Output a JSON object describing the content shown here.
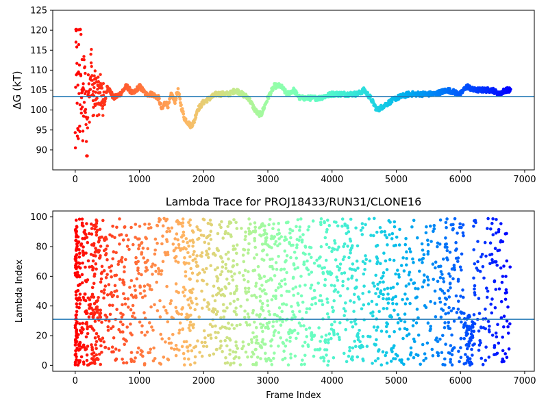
{
  "chart_data": [
    {
      "type": "scatter",
      "title": "",
      "xlabel": "",
      "ylabel": "ΔG (kT)",
      "xlim": [
        -350,
        7150
      ],
      "ylim": [
        85,
        125
      ],
      "xticks": [
        0,
        1000,
        2000,
        3000,
        4000,
        5000,
        6000,
        7000
      ],
      "yticks": [
        90,
        95,
        100,
        105,
        110,
        115,
        120,
        125
      ],
      "reference_line": 103.4,
      "reference_line_color": "#1f77b4",
      "colormap": "rainbow (red → purple with increasing frame index)",
      "series": [
        {
          "x": [
            0,
            10,
            20,
            30,
            40,
            50,
            60,
            70,
            80,
            100,
            120,
            140,
            160,
            180,
            200,
            220,
            250,
            280,
            300,
            350,
            400,
            450,
            500,
            600,
            700,
            800,
            900,
            1000,
            1100,
            1200,
            1300,
            1350,
            1400,
            1450,
            1500,
            1550,
            1600,
            1650,
            1700,
            1750,
            1800,
            1850,
            1900,
            2000,
            2100,
            2200,
            2300,
            2400,
            2500,
            2600,
            2700,
            2800,
            2850,
            2900,
            3000,
            3100,
            3150,
            3200,
            3300,
            3400,
            3500,
            3600,
            3700,
            3800,
            4000,
            4200,
            4400,
            4500,
            4600,
            4700,
            4800,
            5000,
            5200,
            5400,
            5600,
            5800,
            6000,
            6100,
            6200,
            6300,
            6400,
            6500,
            6600,
            6700,
            6780
          ],
          "y": [
            90,
            110,
            120,
            95,
            105,
            100,
            115,
            98,
            112,
            108,
            96,
            110,
            104,
            89,
            107,
            101,
            112,
            99,
            106,
            103,
            105,
            101,
            106,
            103,
            104,
            106,
            104,
            106,
            104,
            104,
            103,
            100,
            102,
            101,
            104,
            102,
            105,
            101,
            98,
            97,
            96,
            97,
            100,
            102,
            103,
            104,
            104,
            104,
            105,
            104,
            103,
            100,
            99,
            99,
            103,
            106,
            106,
            106,
            104,
            105,
            103,
            103,
            103,
            103,
            104,
            104,
            104,
            105,
            103,
            100,
            101,
            103,
            104,
            104,
            104,
            105,
            104,
            106,
            105,
            105,
            105,
            105,
            104,
            105,
            105
          ]
        }
      ]
    },
    {
      "type": "scatter",
      "title": "Lambda Trace for PROJ18433/RUN31/CLONE16",
      "xlabel": "Frame Index",
      "ylabel": "Lambda Index",
      "xlim": [
        -350,
        7150
      ],
      "ylim": [
        -4,
        104
      ],
      "xticks": [
        0,
        1000,
        2000,
        3000,
        4000,
        5000,
        6000,
        7000
      ],
      "yticks": [
        0,
        20,
        40,
        60,
        80,
        100
      ],
      "reference_line": 31,
      "reference_line_color": "#1f77b4",
      "colormap": "rainbow (red → purple with increasing frame index)",
      "point_count": 6780,
      "x_range": [
        0,
        6780
      ],
      "y_range": [
        0,
        99
      ]
    }
  ]
}
